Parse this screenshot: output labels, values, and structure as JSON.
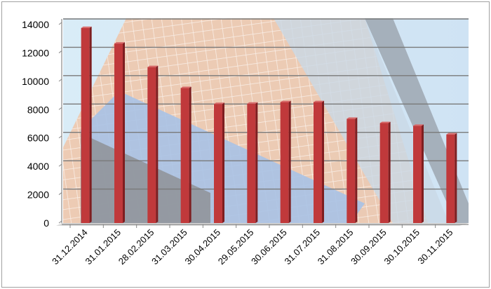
{
  "chart_data": {
    "type": "bar",
    "title": "",
    "xlabel": "",
    "ylabel": "",
    "categories": [
      "31.12.2014",
      "31.01.2015",
      "28.02.2015",
      "31.03.2015",
      "30.04.2015",
      "29.05.2015",
      "30.06.2015",
      "31.07.2015",
      "31.08.2015",
      "30.09.2015",
      "30.10.2015",
      "30.11.2015"
    ],
    "values": [
      13760,
      12660,
      11000,
      9520,
      8400,
      8420,
      8530,
      8530,
      7350,
      7050,
      6860,
      6250
    ],
    "ylim": [
      0,
      14000
    ],
    "yticks": [
      0,
      2000,
      4000,
      6000,
      8000,
      10000,
      12000,
      14000
    ],
    "grid": true,
    "legend": "none",
    "bar_color": "#c0393b"
  }
}
